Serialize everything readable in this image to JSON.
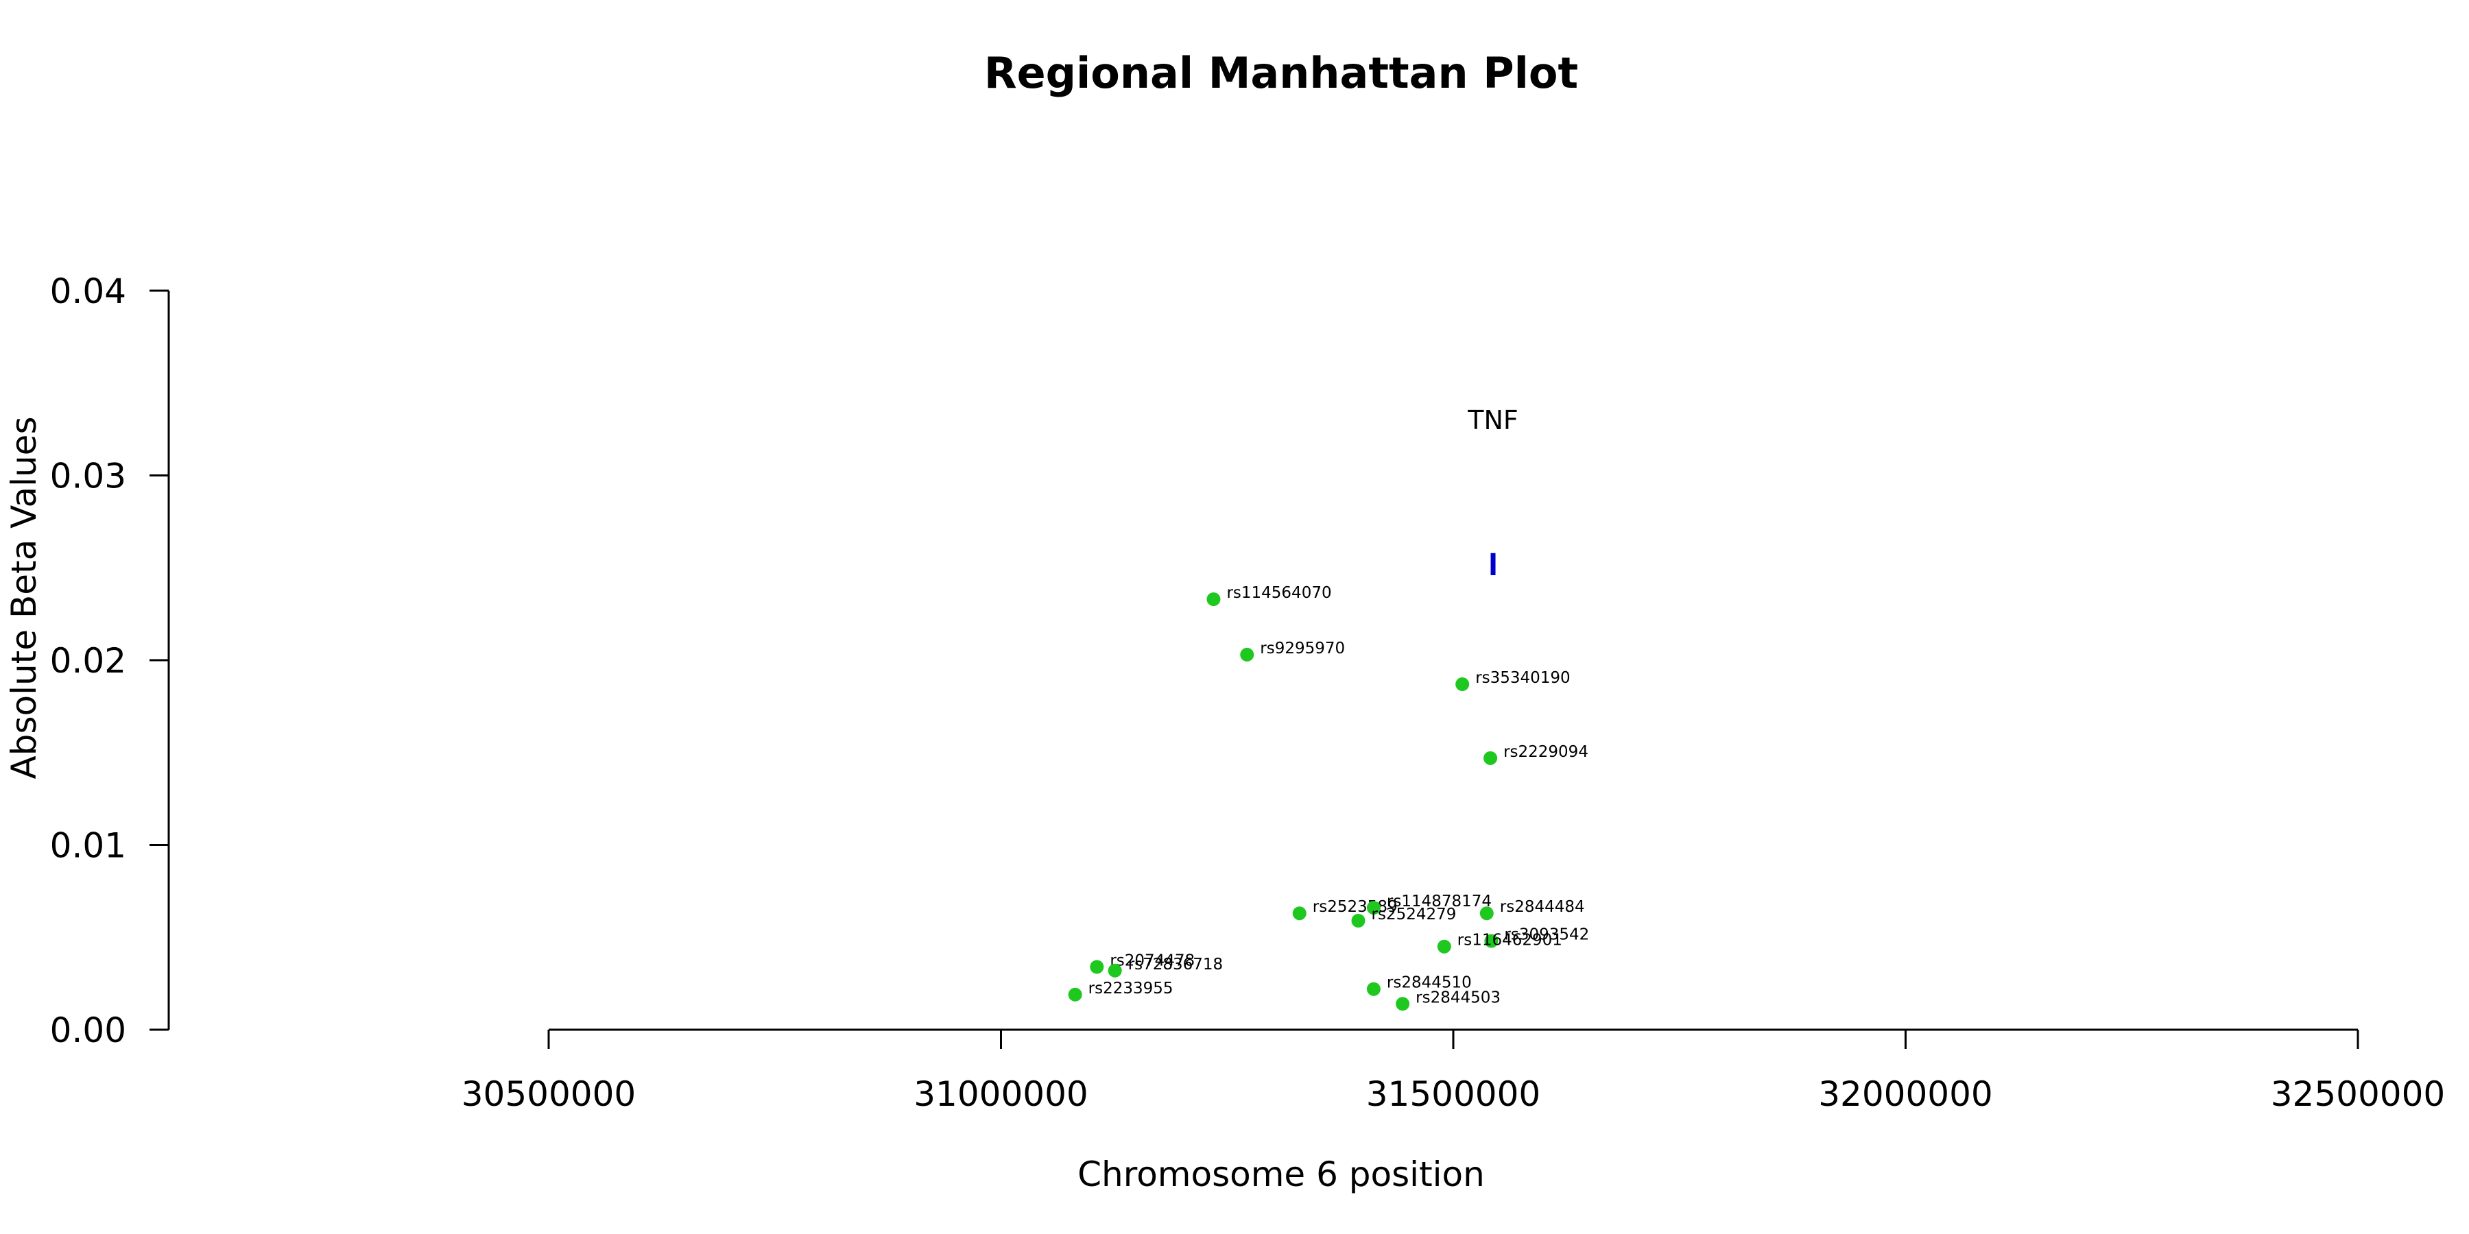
{
  "chart_data": {
    "type": "scatter",
    "title": "Regional Manhattan Plot",
    "xlabel": "Chromosome 6 position",
    "ylabel": "Absolute Beta Values",
    "xlim": [
      30500000,
      32500000
    ],
    "ylim": [
      0,
      0.04
    ],
    "x_ticks": [
      30500000,
      31000000,
      31500000,
      32000000,
      32500000
    ],
    "x_tick_labels": [
      "30500000",
      "31000000",
      "31500000",
      "32000000",
      "32500000"
    ],
    "y_ticks": [
      0,
      0.01,
      0.02,
      0.03,
      0.04
    ],
    "y_tick_labels": [
      "0.00",
      "0.01",
      "0.02",
      "0.03",
      "0.04"
    ],
    "grid": false,
    "point_color": "#1ec81e",
    "gene_color": "#0000cd",
    "points": [
      {
        "label": "rs114564070",
        "x": 31235000,
        "y": 0.0233
      },
      {
        "label": "rs9295970",
        "x": 31272000,
        "y": 0.0203
      },
      {
        "label": "rs35340190",
        "x": 31510000,
        "y": 0.0187
      },
      {
        "label": "rs2229094",
        "x": 31541000,
        "y": 0.0147
      },
      {
        "label": "rs2523589",
        "x": 31330000,
        "y": 0.0063
      },
      {
        "label": "rs114878174",
        "x": 31412000,
        "y": 0.0066
      },
      {
        "label": "rs2524279",
        "x": 31395000,
        "y": 0.0059
      },
      {
        "label": "rs2844484",
        "x": 31537000,
        "y": 0.0063
      },
      {
        "label": "rs3093542",
        "x": 31542000,
        "y": 0.0048
      },
      {
        "label": "rs116462901",
        "x": 31490000,
        "y": 0.0045
      },
      {
        "label": "rs2074478",
        "x": 31106000,
        "y": 0.0034
      },
      {
        "label": "rs72836718",
        "x": 31126000,
        "y": 0.0032
      },
      {
        "label": "rs2233955",
        "x": 31082000,
        "y": 0.0019
      },
      {
        "label": "rs2844510",
        "x": 31412000,
        "y": 0.0022
      },
      {
        "label": "rs2844503",
        "x": 31444000,
        "y": 0.0014
      }
    ],
    "genes": [
      {
        "name": "TNF",
        "x": 31544000,
        "y_low": 0.0246,
        "y_high": 0.0258,
        "label_y": 0.0325
      }
    ]
  }
}
